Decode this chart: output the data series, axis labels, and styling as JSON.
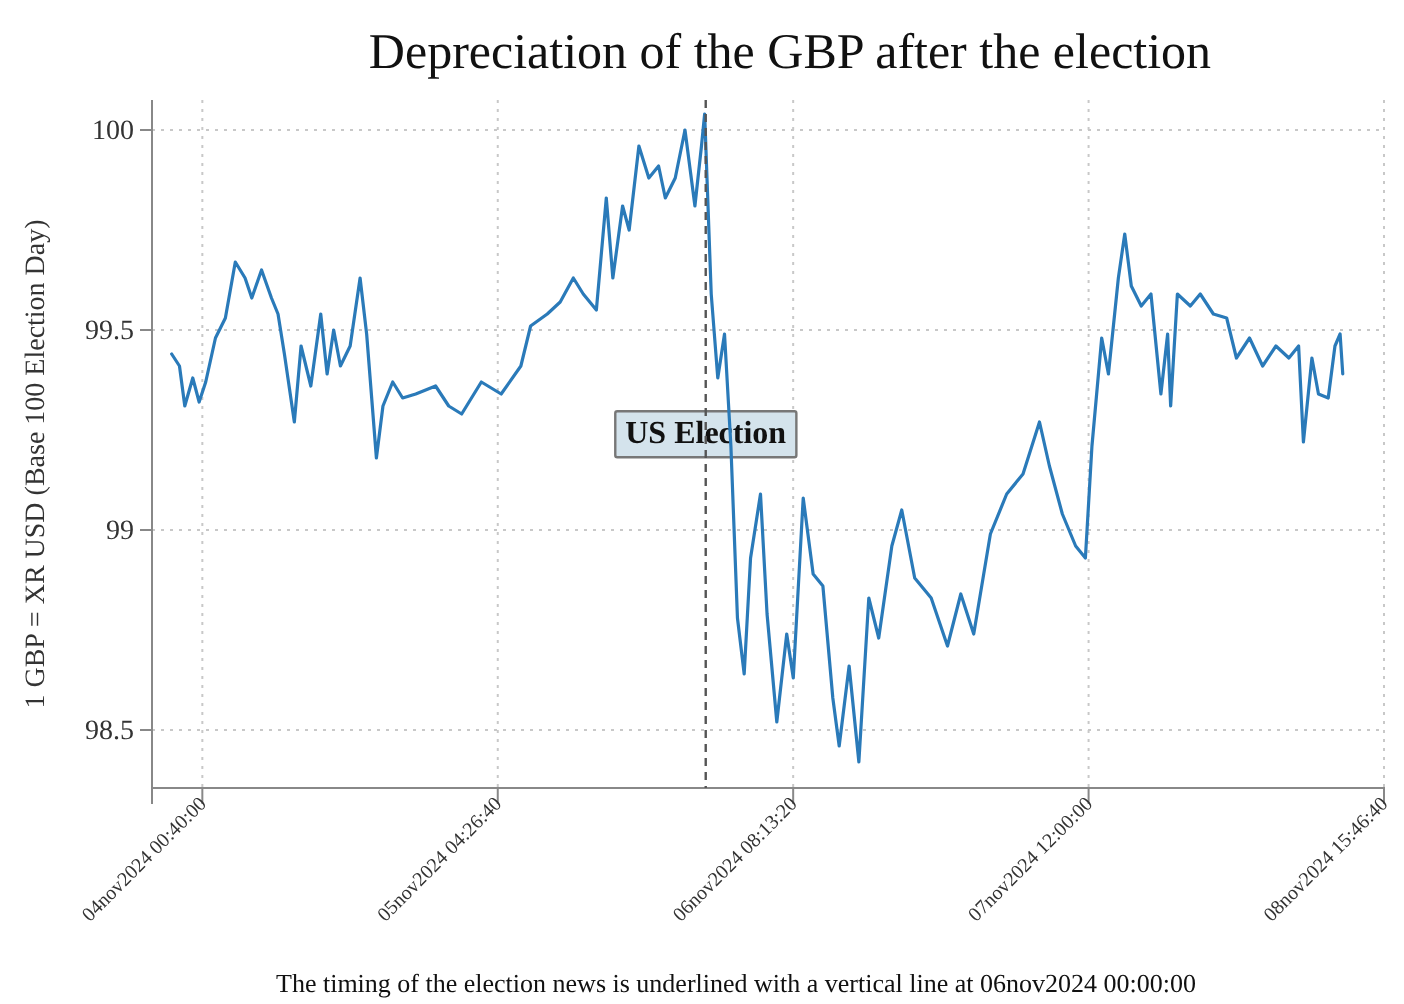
{
  "chart_data": {
    "type": "line",
    "title": "Depreciation of the GBP after the election",
    "ylabel": "1 GBP = XR USD (Base 100 Election Day)",
    "annotations": [
      "The timing of the election news is underlined with a vertical line at 06nov2024 00:00:00"
    ],
    "xlim": [
      "2024-11-03T19:56",
      "2024-11-08T15:46:40"
    ],
    "xticks": [
      {
        "value": "2024-11-04T00:40",
        "label": "04nov2024 00:40:00"
      },
      {
        "value": "2024-11-05T04:26:40",
        "label": "05nov2024 04:26:40"
      },
      {
        "value": "2024-11-06T08:13:20",
        "label": "06nov2024 08:13:20"
      },
      {
        "value": "2024-11-07T12:00",
        "label": "07nov2024 12:00:00"
      },
      {
        "value": "2024-11-08T15:46:40",
        "label": "08nov2024 15:46:40"
      }
    ],
    "ylim": [
      98.355,
      100.075
    ],
    "yticks": [
      98.5,
      99,
      99.5,
      100
    ],
    "grid": true,
    "ref_lines": [
      {
        "axis": "x",
        "value": "2024-11-06T00:00",
        "label": "US Election",
        "color": "#555555",
        "line_style": "dashed"
      }
    ],
    "series": [
      {
        "color": "#2a7ab9",
        "x": [
          "2024-11-03T21:47",
          "2024-11-03T22:31",
          "2024-11-03T23:01",
          "2024-11-03T23:46",
          "2024-11-04T00:22",
          "2024-11-04T00:59",
          "2024-11-04T01:54",
          "2024-11-04T02:50",
          "2024-11-04T03:46",
          "2024-11-04T04:41",
          "2024-11-04T05:19",
          "2024-11-04T06:14",
          "2024-11-04T07:10",
          "2024-11-04T07:47",
          "2024-11-04T08:23",
          "2024-11-04T09:19",
          "2024-11-04T09:57",
          "2024-11-04T10:52",
          "2024-11-04T11:48",
          "2024-11-04T12:24",
          "2024-11-04T13:01",
          "2024-11-04T13:39",
          "2024-11-04T14:34",
          "2024-11-04T15:30",
          "2024-11-04T16:07",
          "2024-11-04T17:02",
          "2024-11-04T17:39",
          "2024-11-04T18:34",
          "2024-11-04T19:30",
          "2024-11-04T20:44",
          "2024-11-04T22:36",
          "2024-11-04T23:50",
          "2024-11-05T01:03",
          "2024-11-05T02:54",
          "2024-11-05T04:46",
          "2024-11-05T06:37",
          "2024-11-05T07:32",
          "2024-11-05T09:06",
          "2024-11-05T10:19",
          "2024-11-05T11:33",
          "2024-11-05T12:29",
          "2024-11-05T13:43",
          "2024-11-05T14:39",
          "2024-11-05T15:16",
          "2024-11-05T16:11",
          "2024-11-05T16:48",
          "2024-11-05T17:43",
          "2024-11-05T18:39",
          "2024-11-05T19:34",
          "2024-11-05T20:12",
          "2024-11-05T21:08",
          "2024-11-05T22:03",
          "2024-11-05T22:59",
          "2024-11-05T23:36",
          "2024-11-05T23:54",
          "2024-11-06T00:31",
          "2024-11-06T01:08",
          "2024-11-06T01:46",
          "2024-11-06T02:22",
          "2024-11-06T02:59",
          "2024-11-06T03:37",
          "2024-11-06T04:13",
          "2024-11-06T05:09",
          "2024-11-06T05:46",
          "2024-11-06T06:41",
          "2024-11-06T07:37",
          "2024-11-06T08:14",
          "2024-11-06T09:10",
          "2024-11-06T10:06",
          "2024-11-06T11:01",
          "2024-11-06T11:57",
          "2024-11-06T12:33",
          "2024-11-06T13:29",
          "2024-11-06T14:24",
          "2024-11-06T15:20",
          "2024-11-06T16:16",
          "2024-11-06T17:30",
          "2024-11-06T18:26",
          "2024-11-06T19:39",
          "2024-11-06T21:12",
          "2024-11-06T22:44",
          "2024-11-06T23:59",
          "2024-11-07T01:12",
          "2024-11-07T02:46",
          "2024-11-07T04:18",
          "2024-11-07T05:50",
          "2024-11-07T07:23",
          "2024-11-07T08:19",
          "2024-11-07T09:32",
          "2024-11-07T10:47",
          "2024-11-07T11:42",
          "2024-11-07T12:19",
          "2024-11-07T13:14",
          "2024-11-07T13:52",
          "2024-11-07T14:48",
          "2024-11-07T15:24",
          "2024-11-07T16:01",
          "2024-11-07T16:57",
          "2024-11-07T17:52",
          "2024-11-07T18:48",
          "2024-11-07T19:26",
          "2024-11-07T19:43",
          "2024-11-07T20:21",
          "2024-11-07T21:34",
          "2024-11-07T22:30",
          "2024-11-07T23:44",
          "2024-11-08T00:59",
          "2024-11-08T01:54",
          "2024-11-08T03:08",
          "2024-11-08T04:22",
          "2024-11-08T05:37",
          "2024-11-08T06:50",
          "2024-11-08T07:45",
          "2024-11-08T08:12",
          "2024-11-08T09:00",
          "2024-11-08T09:37",
          "2024-11-08T10:32",
          "2024-11-08T11:10",
          "2024-11-08T11:39",
          "2024-11-08T11:54"
        ],
        "values": [
          99.44,
          99.41,
          99.31,
          99.38,
          99.32,
          99.37,
          99.48,
          99.53,
          99.67,
          99.63,
          99.58,
          99.65,
          99.58,
          99.54,
          99.44,
          99.27,
          99.46,
          99.36,
          99.54,
          99.39,
          99.5,
          99.41,
          99.46,
          99.63,
          99.49,
          99.18,
          99.31,
          99.37,
          99.33,
          99.34,
          99.36,
          99.31,
          99.29,
          99.37,
          99.34,
          99.41,
          99.51,
          99.54,
          99.57,
          99.63,
          99.59,
          99.55,
          99.83,
          99.63,
          99.81,
          99.75,
          99.96,
          99.88,
          99.91,
          99.83,
          99.88,
          100,
          99.81,
          99.96,
          100.04,
          99.59,
          99.38,
          99.49,
          99.21,
          98.78,
          98.64,
          98.93,
          99.09,
          98.79,
          98.52,
          98.74,
          98.63,
          99.08,
          98.89,
          98.86,
          98.58,
          98.46,
          98.66,
          98.42,
          98.83,
          98.73,
          98.96,
          99.05,
          98.88,
          98.83,
          98.71,
          98.84,
          98.74,
          98.99,
          99.09,
          99.14,
          99.27,
          99.16,
          99.04,
          98.96,
          98.93,
          99.21,
          99.48,
          99.39,
          99.63,
          99.74,
          99.61,
          99.56,
          99.59,
          99.34,
          99.49,
          99.31,
          99.59,
          99.56,
          99.59,
          99.54,
          99.53,
          99.43,
          99.48,
          99.41,
          99.46,
          99.43,
          99.46,
          99.22,
          99.43,
          99.34,
          99.33,
          99.46,
          99.49,
          99.39
        ]
      }
    ]
  }
}
